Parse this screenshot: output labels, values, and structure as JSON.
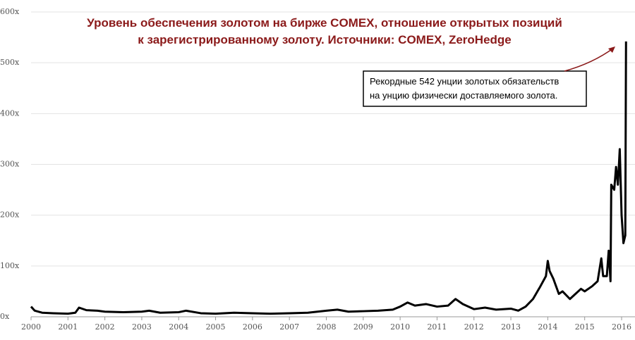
{
  "chart_data": {
    "type": "line",
    "title": [
      "Уровень обеспечения золотом на бирже COMEX, отношение открытых позиций",
      "к зарегистрированному золоту. Источники: COMEX, ZeroHedge"
    ],
    "annotation": [
      "Рекордные 542 унции золотых обязательств",
      "на унцию физически доставляемого золота."
    ],
    "xlim": [
      2000,
      2016.3
    ],
    "xticks": [
      2000,
      2001,
      2002,
      2003,
      2004,
      2005,
      2006,
      2007,
      2008,
      2009,
      2010,
      2011,
      2012,
      2013,
      2014,
      2015,
      2016
    ],
    "ylim": [
      0,
      600
    ],
    "yticks": [
      {
        "value": 0,
        "label": "0x"
      },
      {
        "value": 100,
        "label": "100x"
      },
      {
        "value": 200,
        "label": "200x"
      },
      {
        "value": 300,
        "label": "300x"
      },
      {
        "value": 400,
        "label": "400x"
      },
      {
        "value": 500,
        "label": "500x"
      },
      {
        "value": 600,
        "label": "600x"
      }
    ],
    "grid": true,
    "series": [
      {
        "color": "#000000",
        "x": [
          2000.0,
          2000.1,
          2000.3,
          2000.6,
          2001.0,
          2001.2,
          2001.3,
          2001.5,
          2001.8,
          2002.0,
          2002.5,
          2003.0,
          2003.2,
          2003.5,
          2004.0,
          2004.2,
          2004.6,
          2005.0,
          2005.5,
          2006.0,
          2006.5,
          2007.0,
          2007.5,
          2008.0,
          2008.3,
          2008.6,
          2009.0,
          2009.4,
          2009.8,
          2010.0,
          2010.2,
          2010.4,
          2010.7,
          2011.0,
          2011.3,
          2011.5,
          2011.7,
          2012.0,
          2012.3,
          2012.6,
          2013.0,
          2013.2,
          2013.4,
          2013.6,
          2013.8,
          2013.95,
          2014.0,
          2014.05,
          2014.15,
          2014.3,
          2014.4,
          2014.6,
          2014.75,
          2014.9,
          2015.0,
          2015.2,
          2015.35,
          2015.45,
          2015.5,
          2015.6,
          2015.65,
          2015.7,
          2015.72,
          2015.8,
          2015.85,
          2015.9,
          2015.95,
          2016.0,
          2016.05,
          2016.1,
          2016.12
        ],
        "values": [
          20,
          12,
          8,
          7,
          6,
          8,
          18,
          13,
          12,
          10,
          9,
          10,
          12,
          8,
          9,
          12,
          7,
          6,
          8,
          7,
          6,
          7,
          8,
          12,
          14,
          10,
          11,
          12,
          14,
          20,
          28,
          22,
          25,
          20,
          22,
          35,
          25,
          15,
          18,
          14,
          16,
          12,
          20,
          35,
          60,
          80,
          110,
          90,
          75,
          45,
          50,
          35,
          45,
          55,
          50,
          60,
          70,
          115,
          80,
          80,
          130,
          70,
          260,
          250,
          295,
          260,
          330,
          200,
          145,
          160,
          542
        ]
      }
    ]
  }
}
